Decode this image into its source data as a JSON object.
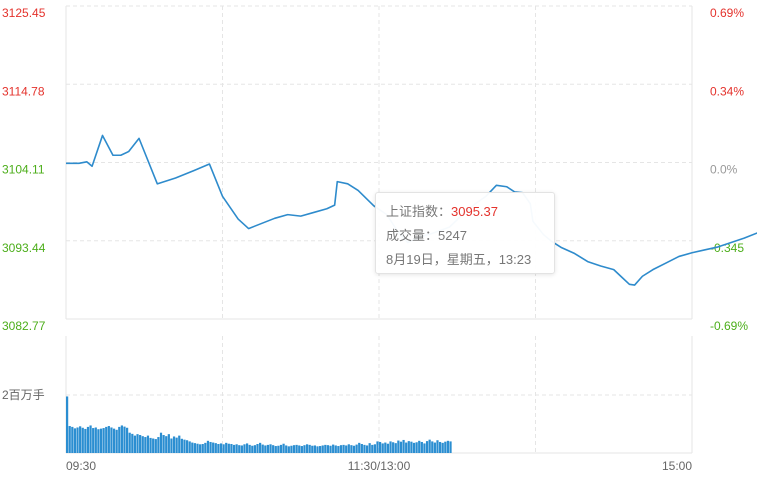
{
  "chart_data": {
    "type": "line",
    "price_axis": {
      "ticks": [
        "3125.45",
        "3114.78",
        "3104.11",
        "3093.44",
        "3082.77"
      ],
      "range": [
        3082.77,
        3125.45
      ],
      "base": 3104.11,
      "tick_colors": [
        "#e4322c",
        "#e4322c",
        "#4cae1a",
        "#4cae1a",
        "#4cae1a"
      ]
    },
    "percent_axis": {
      "ticks": [
        "0.69%",
        "0.34%",
        "0.0%",
        "-0.345",
        "-0.69%"
      ],
      "tick_colors": [
        "#e4322c",
        "#e4322c",
        "#999999",
        "#4cae1a",
        "#4cae1a"
      ]
    },
    "volume_axis": {
      "label": "2百万手",
      "level": 2000000
    },
    "x_axis": {
      "labels": [
        "09:30",
        "11:30/13:00",
        "15:00"
      ]
    },
    "series": [
      {
        "values": [
          [
            0,
            3104.0
          ],
          [
            5,
            3104.0
          ],
          [
            8,
            3104.2
          ],
          [
            10,
            3103.6
          ],
          [
            14,
            3107.8
          ],
          [
            18,
            3105.1
          ],
          [
            21,
            3105.1
          ],
          [
            24,
            3105.6
          ],
          [
            28,
            3107.4
          ],
          [
            35,
            3101.2
          ],
          [
            42,
            3102.0
          ],
          [
            49,
            3103.0
          ],
          [
            55,
            3103.9
          ],
          [
            60,
            3099.5
          ],
          [
            66,
            3096.4
          ],
          [
            70,
            3095.1
          ],
          [
            75,
            3095.8
          ],
          [
            80,
            3096.5
          ],
          [
            85,
            3097.0
          ],
          [
            90,
            3096.8
          ],
          [
            95,
            3097.3
          ],
          [
            100,
            3097.8
          ],
          [
            103,
            3098.3
          ],
          [
            104,
            3101.5
          ],
          [
            108,
            3101.2
          ],
          [
            112,
            3100.3
          ],
          [
            118,
            3098.2
          ],
          [
            123,
            3097.0
          ],
          [
            127,
            3094.8
          ],
          [
            131,
            3093.2
          ],
          [
            136,
            3094.0
          ],
          [
            140,
            3094.4
          ],
          [
            147,
            3095.3
          ],
          [
            152,
            3097.0
          ],
          [
            157,
            3098.5
          ],
          [
            161,
            3099.5
          ],
          [
            165,
            3101.0
          ],
          [
            169,
            3100.8
          ],
          [
            172,
            3100.1
          ],
          [
            175,
            3100.0
          ],
          [
            178,
            3098.5
          ],
          [
            179,
            3096.1
          ],
          [
            183,
            3094.3
          ],
          [
            186,
            3093.4
          ],
          [
            190,
            3092.5
          ],
          [
            195,
            3091.7
          ],
          [
            200,
            3090.6
          ],
          [
            205,
            3090.0
          ],
          [
            210,
            3089.5
          ],
          [
            213,
            3088.5
          ],
          [
            216,
            3087.5
          ],
          [
            218,
            3087.4
          ],
          [
            221,
            3088.6
          ],
          [
            225,
            3089.5
          ],
          [
            230,
            3090.4
          ],
          [
            235,
            3091.3
          ],
          [
            240,
            3091.8
          ],
          [
            245,
            3092.2
          ],
          [
            250,
            3092.6
          ],
          [
            255,
            3093.2
          ],
          [
            260,
            3093.8
          ],
          [
            265,
            3094.5
          ],
          [
            270,
            3095.3
          ],
          [
            275,
            3096.1
          ],
          [
            279,
            3096.9
          ]
        ]
      }
    ],
    "volume": [
      1.95,
      0.93,
      0.9,
      0.85,
      0.88,
      0.92,
      0.87,
      0.83,
      0.9,
      0.95,
      0.86,
      0.88,
      0.82,
      0.84,
      0.86,
      0.9,
      0.93,
      0.88,
      0.84,
      0.8,
      0.9,
      0.95,
      0.91,
      0.87,
      0.7,
      0.66,
      0.6,
      0.65,
      0.62,
      0.58,
      0.55,
      0.6,
      0.52,
      0.5,
      0.48,
      0.55,
      0.7,
      0.62,
      0.58,
      0.65,
      0.5,
      0.57,
      0.53,
      0.6,
      0.49,
      0.46,
      0.44,
      0.4,
      0.36,
      0.34,
      0.32,
      0.3,
      0.31,
      0.35,
      0.42,
      0.38,
      0.36,
      0.34,
      0.31,
      0.33,
      0.3,
      0.35,
      0.32,
      0.31,
      0.28,
      0.3,
      0.27,
      0.26,
      0.3,
      0.33,
      0.28,
      0.25,
      0.27,
      0.31,
      0.35,
      0.29,
      0.26,
      0.28,
      0.3,
      0.27,
      0.24,
      0.25,
      0.28,
      0.32,
      0.26,
      0.23,
      0.25,
      0.27,
      0.28,
      0.26,
      0.24,
      0.27,
      0.3,
      0.28,
      0.25,
      0.26,
      0.23,
      0.24,
      0.26,
      0.28,
      0.27,
      0.25,
      0.29,
      0.26,
      0.24,
      0.27,
      0.28,
      0.26,
      0.3,
      0.27,
      0.25,
      0.29,
      0.35,
      0.31,
      0.28,
      0.26,
      0.34,
      0.28,
      0.3,
      0.4,
      0.38,
      0.33,
      0.36,
      0.32,
      0.4,
      0.37,
      0.34,
      0.43,
      0.39,
      0.45,
      0.36,
      0.41,
      0.39,
      0.35,
      0.37,
      0.42,
      0.38,
      0.33,
      0.41,
      0.46,
      0.4,
      0.36,
      0.44,
      0.38,
      0.35,
      0.39,
      0.42,
      0.4
    ],
    "crosshair_minute": 279,
    "colors": {
      "line": "#2e8bcc",
      "volume": "#2b8ed1",
      "grid": "#e5e5e5",
      "crosshair": "#7ab6df"
    }
  },
  "tooltip": {
    "index_label": "上证指数：",
    "index_value": "3095.37",
    "volume_text": "成交量：5247",
    "datetime_text": "8月19日，星期五，13:23"
  }
}
